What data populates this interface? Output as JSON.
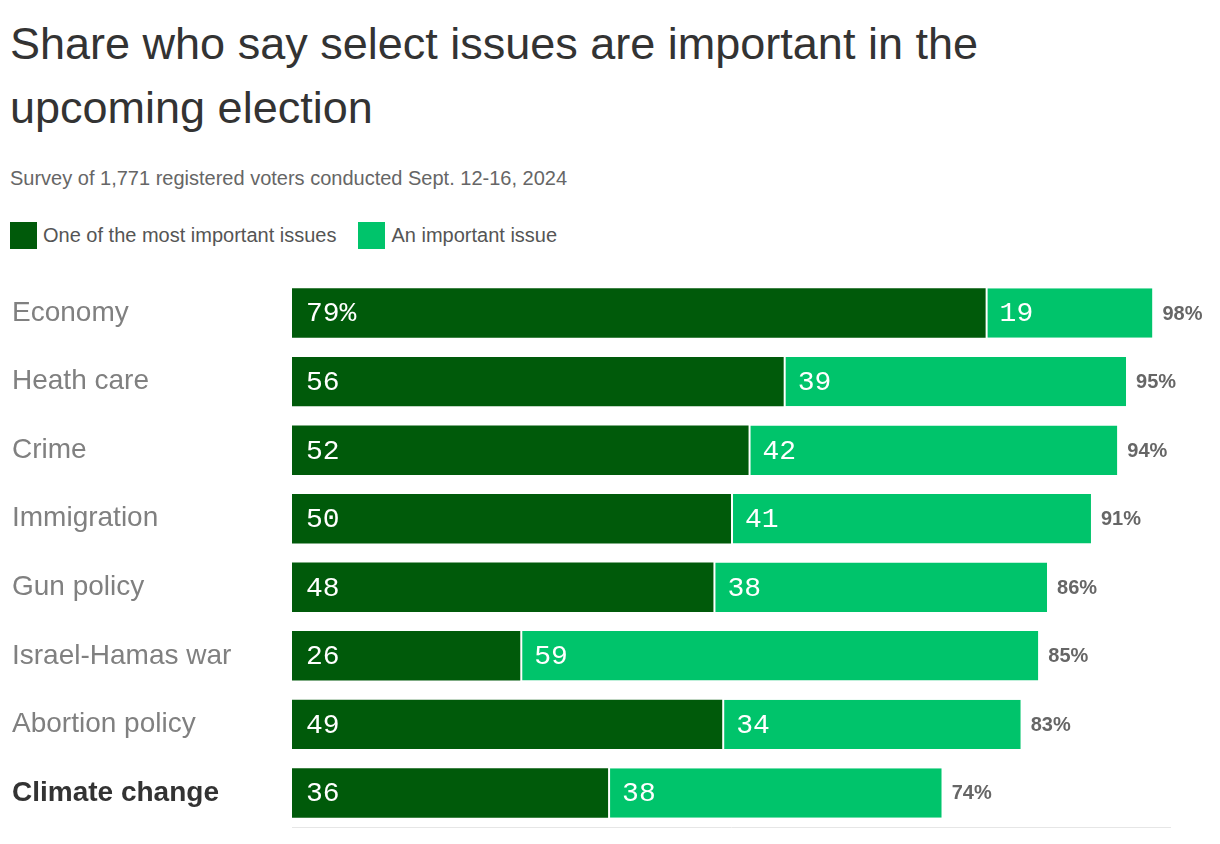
{
  "chart_data": {
    "type": "bar",
    "orientation": "horizontal",
    "stacked": true,
    "title": "Share who say select issues are important in the upcoming election",
    "subtitle": "Survey of 1,771 registered voters conducted Sept. 12-16, 2024",
    "categories": [
      "Economy",
      "Heath care",
      "Crime",
      "Immigration",
      "Gun policy",
      "Israel-Hamas war",
      "Abortion policy",
      "Climate change"
    ],
    "series": [
      {
        "name": "One of the most important issues",
        "color": "#005a0a",
        "values": [
          79,
          56,
          52,
          50,
          48,
          26,
          49,
          36
        ],
        "value_labels": [
          "79%",
          "56",
          "52",
          "50",
          "48",
          "26",
          "49",
          "36"
        ]
      },
      {
        "name": "An important issue",
        "color": "#00c46b",
        "values": [
          19,
          39,
          42,
          41,
          38,
          59,
          34,
          38
        ]
      }
    ],
    "totals": [
      98,
      95,
      94,
      91,
      86,
      85,
      83,
      74
    ],
    "total_labels": [
      "98%",
      "95%",
      "94%",
      "91%",
      "86%",
      "85%",
      "83%",
      "74%"
    ],
    "xlim": [
      0,
      100
    ],
    "grid": false,
    "legend": "top-left",
    "data_labels": true,
    "tick_labels": "y"
  }
}
